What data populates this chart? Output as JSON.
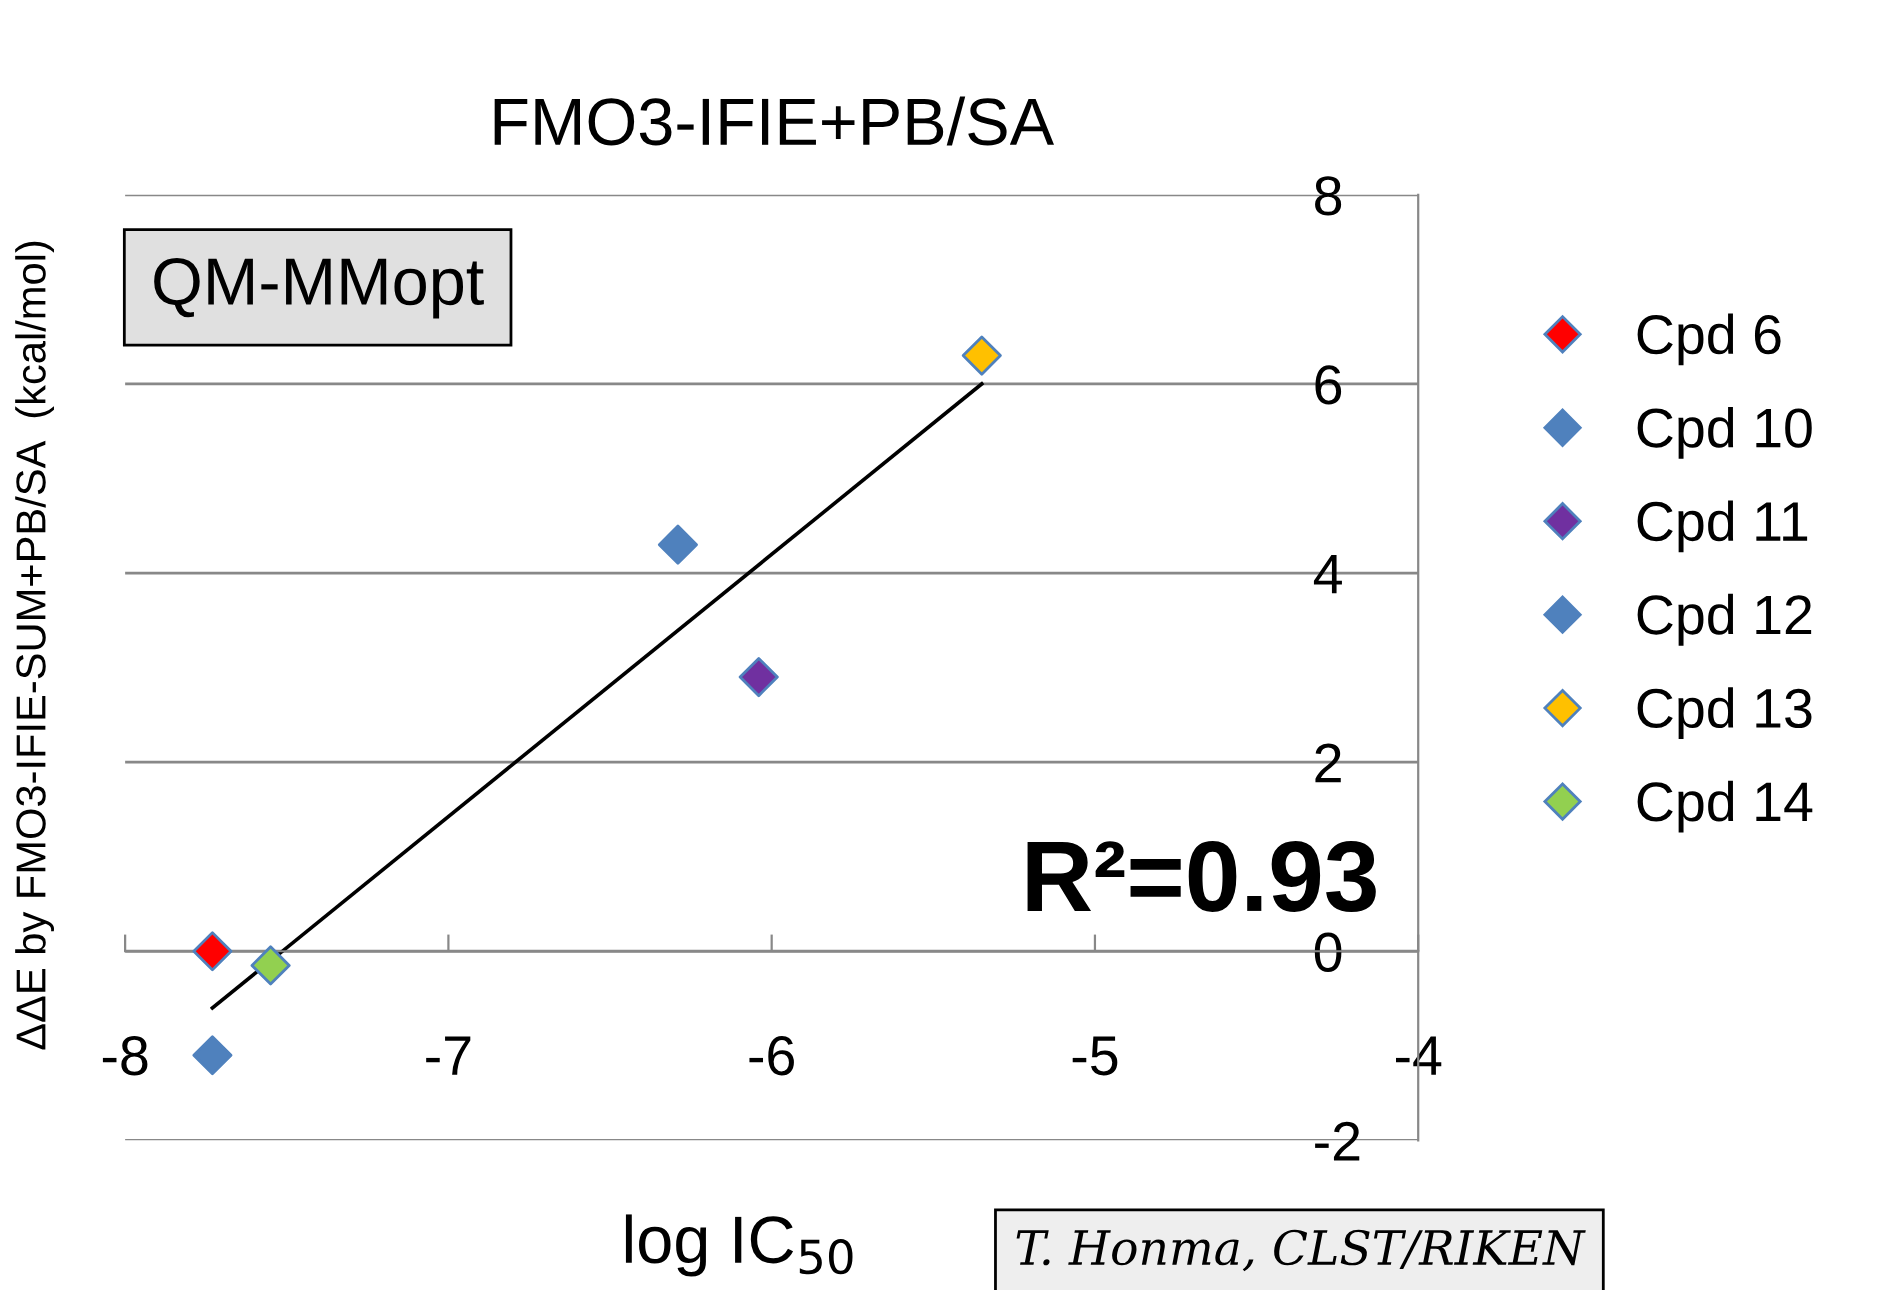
{
  "chart_data": {
    "type": "scatter",
    "title": "FMO3-IFIE+PB/SA",
    "xlabel": "log IC$_{50}$",
    "ylabel": "ΔΔE by FMO3-IFIE-SUM+PB/SA  (kcal/mol)",
    "xlim": [
      -8,
      -4
    ],
    "xticks": [
      -8,
      -7,
      -6,
      -5,
      -4
    ],
    "ylim": [
      -2,
      8
    ],
    "yticks": [
      -2,
      0,
      2,
      4,
      6,
      8
    ],
    "grid": "y",
    "legend": "right",
    "marker": "diamond",
    "series": [
      {
        "name": "Cpd 6",
        "color": "#ff0000",
        "x": [
          -7.73
        ],
        "values": [
          0.0
        ]
      },
      {
        "name": "Cpd 10",
        "color": "#4f81bd",
        "x": [
          -6.29
        ],
        "values": [
          4.3
        ]
      },
      {
        "name": "Cpd 11",
        "color": "#7030a0",
        "x": [
          -6.04
        ],
        "values": [
          2.9
        ]
      },
      {
        "name": "Cpd 12",
        "color": "#4f81bd",
        "x": [
          -7.73
        ],
        "values": [
          -1.1
        ]
      },
      {
        "name": "Cpd 13",
        "color": "#ffc000",
        "x": [
          -5.35
        ],
        "values": [
          6.3
        ]
      },
      {
        "name": "Cpd 14",
        "color": "#92d050",
        "x": [
          -7.55
        ],
        "values": [
          -0.15
        ]
      },
      {
        "type": "line",
        "marker": "none",
        "color": "#000000",
        "x": [
          -7.73,
          -5.35
        ],
        "values": [
          -0.6,
          6.0
        ]
      }
    ],
    "annotations": [
      "QM-MMopt",
      "R²=0.93",
      "T. Honma, CLST/RIKEN"
    ]
  }
}
